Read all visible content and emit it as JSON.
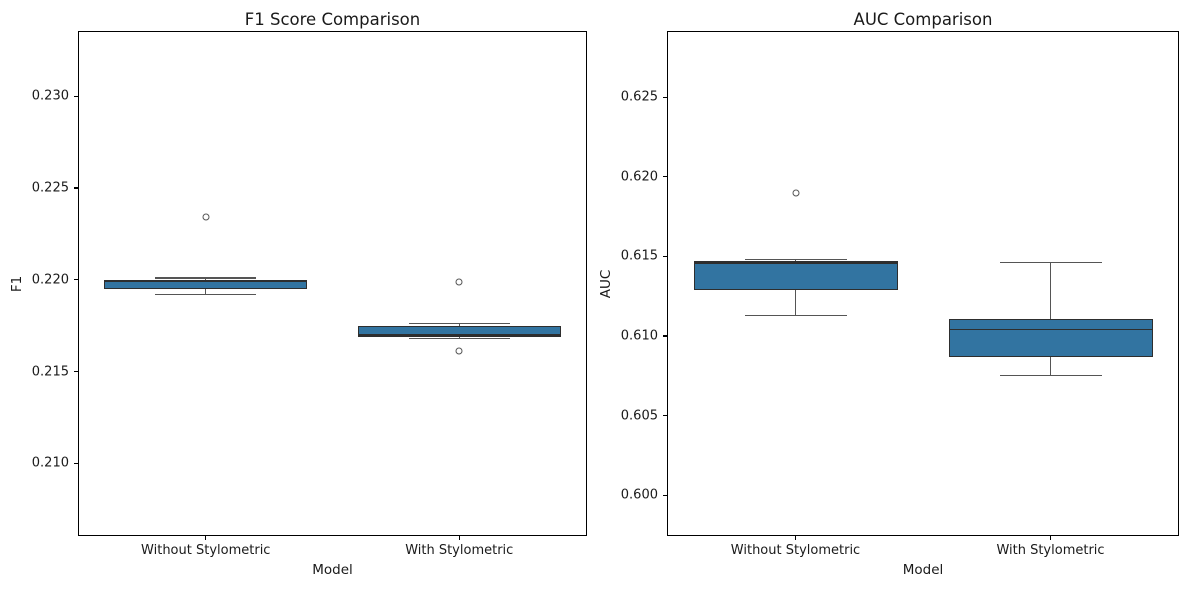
{
  "figure": {
    "colors": {
      "background": "#ffffff",
      "box_fill": "#3274a1",
      "box_edge": "#2e2e2e",
      "median": "#2e2e2e",
      "whisker": "#555555",
      "outlier": "#555555",
      "spine": "#000000",
      "text": "#1a1a1a"
    }
  },
  "chart_data": [
    {
      "type": "box",
      "title": "F1 Score Comparison",
      "xlabel": "Model",
      "ylabel": "F1",
      "categories": [
        "Without Stylometric",
        "With Stylometric"
      ],
      "ylim": [
        0.2061,
        0.2335
      ],
      "grid": false,
      "yticks": [
        {
          "label": "0.210",
          "v": 0.21
        },
        {
          "label": "0.215",
          "v": 0.215
        },
        {
          "label": "0.220",
          "v": 0.22
        },
        {
          "label": "0.225",
          "v": 0.225
        },
        {
          "label": "0.230",
          "v": 0.23
        }
      ],
      "boxes": [
        {
          "category": "Without Stylometric",
          "whislo": 0.2192,
          "q1": 0.2195,
          "med": 0.2199,
          "q3": 0.22,
          "whishi": 0.2201,
          "outliers": [
            0.2234
          ]
        },
        {
          "category": "With Stylometric",
          "whislo": 0.2168,
          "q1": 0.2169,
          "med": 0.217,
          "q3": 0.2175,
          "whishi": 0.2176,
          "outliers": [
            0.2199,
            0.2161
          ]
        }
      ]
    },
    {
      "type": "box",
      "title": "AUC Comparison",
      "xlabel": "Model",
      "ylabel": "AUC",
      "categories": [
        "Without Stylometric",
        "With Stylometric"
      ],
      "ylim": [
        0.5975,
        0.6291
      ],
      "grid": false,
      "yticks": [
        {
          "label": "0.600",
          "v": 0.6
        },
        {
          "label": "0.605",
          "v": 0.605
        },
        {
          "label": "0.610",
          "v": 0.61
        },
        {
          "label": "0.615",
          "v": 0.615
        },
        {
          "label": "0.620",
          "v": 0.62
        },
        {
          "label": "0.625",
          "v": 0.625
        }
      ],
      "boxes": [
        {
          "category": "Without Stylometric",
          "whislo": 0.6113,
          "q1": 0.6129,
          "med": 0.6146,
          "q3": 0.6147,
          "whishi": 0.6148,
          "outliers": [
            0.619
          ]
        },
        {
          "category": "With Stylometric",
          "whislo": 0.6075,
          "q1": 0.6087,
          "med": 0.6104,
          "q3": 0.6111,
          "whishi": 0.6146,
          "outliers": []
        }
      ]
    }
  ]
}
